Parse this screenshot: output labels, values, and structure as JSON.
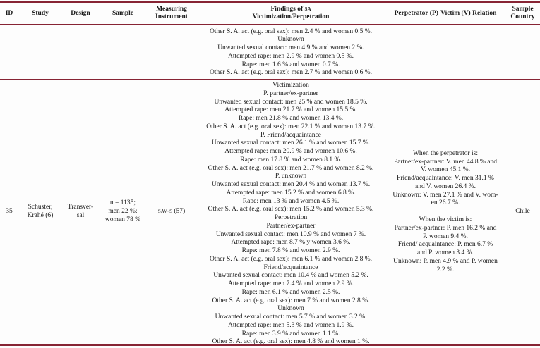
{
  "header": {
    "id": "ID",
    "study": "Study",
    "design": "Design",
    "sample": "Sample",
    "instrument_line1": "Measuring",
    "instrument_line2": "Instrument",
    "findings_prefix": "Findings of ",
    "findings_smallcaps": "sa",
    "findings_line2": "Victimization/Perpetration",
    "relation": "Perpetrator (P)-Victim (V) Relation",
    "country_line1": "Sample",
    "country_line2": "Country"
  },
  "row_continuation": {
    "findings_lines": [
      "Other S. A. act (e.g. oral sex): men 2.4 % and women 0.5 %.",
      "Unknown",
      "Unwanted sexual contact: men 4.9 % and women 2 %.",
      "Attempted rape: men 2.9 % and women 0.5 %.",
      "Rape: men 1.6 % and women 0.7 %.",
      "Other S. A. act (e.g. oral sex): men 2.7 % and women 0.6 %."
    ]
  },
  "row_35": {
    "id": "35",
    "study_lines": [
      "Schuster,",
      "Krahé (6)"
    ],
    "design_lines": [
      "Transver-",
      "sal"
    ],
    "sample_lines": [
      "n = 1135;",
      "men 22 %;",
      "women 78 %"
    ],
    "instrument": "sav-s (57)",
    "findings_lines": [
      "Victimization",
      "P. partner/ex-partner",
      "Unwanted sexual contact: men 25 % and women 18.5 %.",
      "Attempted rape: men 21.7 % and women 15.5 %.",
      "Rape: men 21.8 % and women 13.4 %.",
      "Other S. A. act (e.g. oral sex): men 22.1 % and women 13.7 %.",
      "P. Friend/acquaintance",
      "Unwanted sexual contact: men 26.1 % and women 15.7 %.",
      "Attempted rape: men 20.9 % and women 10.6 %.",
      "Rape: men 17.8 % and women 8.1 %.",
      "Other S. A. act (e.g. oral sex): men 21.7 % and women 8.2 %.",
      "P. unknown",
      "Unwanted sexual contact: men 20.4 % and women 13.7 %.",
      "Attempted rape: men 15.2 % and women 6.8 %.",
      "Rape: men 13 % and women 4.5 %.",
      "Other S. A. act (e.g. oral sex): men 15.2 % and women 5.3 %.",
      "Perpetration",
      "Partner/ex-partner",
      "Unwanted sexual contact: men 10.9 % and women 7 %.",
      "Attempted rape: men 8.7 % y women 3.6 %.",
      "Rape: men 7.8 % and women 2.9 %.",
      "Other S. A. act (e.g. oral sex): men 6.1 % and women 2.8 %.",
      "Friend/acquaintance",
      "Unwanted sexual contact: men 10.4 % and women 5.2 %.",
      "Attempted rape: men 7.4 % and women 2.9 %.",
      "Rape: men 6.1 % and women 2.5 %.",
      "Other S. A. act (e.g. oral sex): men 7 % and women 2.8 %.",
      "Unknown",
      "Unwanted sexual contact: men 5.7 % and women 3.2 %.",
      "Attempted rape: men 5.3 % and women 1.9 %.",
      "Rape: men 3.9 % and women 1.1 %.",
      "Other S. A. act (e.g. oral sex): men 4.8 % and women 1 %."
    ],
    "relation_block1_lines": [
      "When the perpetrator is:",
      "Partner/ex-partner: V. men 44.8 % and",
      "V. women 45.1 %.",
      "Friend/acquaintance: V. men 31.1 %",
      "and V. women 26.4 %.",
      "Unknown: V. men 27.1 % and V. wom-",
      "en 26.7 %."
    ],
    "relation_block2_lines": [
      "When the victim is:",
      "Partner/ex-partner: P. men 16.2 % and",
      "P. women 9.4 %.",
      "Friend/ acquaintance: P. men 6.7 %",
      "and P. women 3.4 %.",
      "Unknown: P. men 4.9 % and P. women",
      "2.2 %."
    ],
    "country": "Chile"
  },
  "colors": {
    "rule": "#872434",
    "text": "#1b1b1b",
    "background": "#fdfdfd"
  }
}
